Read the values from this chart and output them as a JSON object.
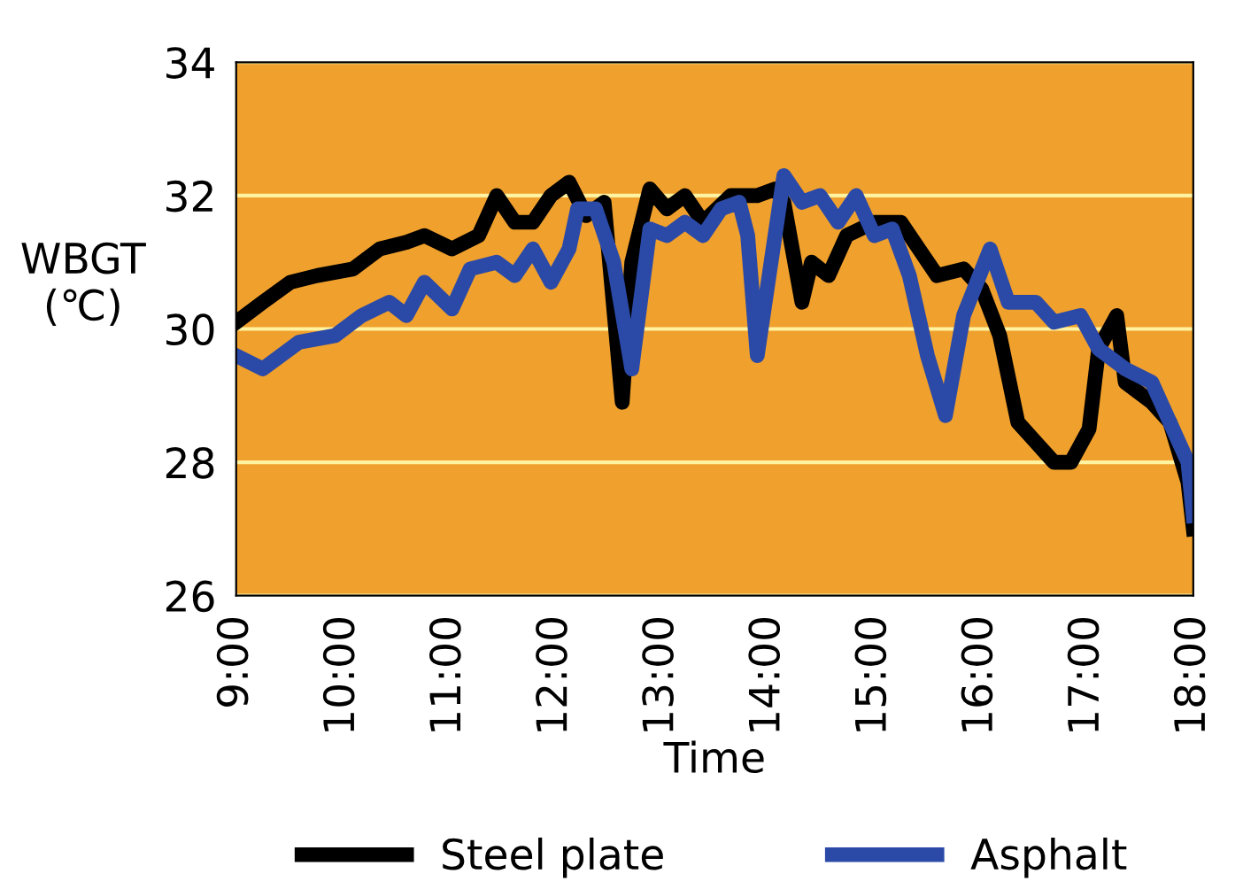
{
  "chart_data": {
    "type": "line",
    "xlabel": "Time",
    "ylabel": "WBGT\n(℃)",
    "xlim": [
      9,
      18
    ],
    "ylim": [
      26,
      34
    ],
    "yticks": [
      26,
      28,
      30,
      32,
      34
    ],
    "xticks": [
      {
        "value": 9,
        "label": "9:00"
      },
      {
        "value": 10,
        "label": "10:00"
      },
      {
        "value": 11,
        "label": "11:00"
      },
      {
        "value": 12,
        "label": "12:00"
      },
      {
        "value": 13,
        "label": "13:00"
      },
      {
        "value": 14,
        "label": "14:00"
      },
      {
        "value": 15,
        "label": "15:00"
      },
      {
        "value": 16,
        "label": "16:00"
      },
      {
        "value": 17,
        "label": "17:00"
      },
      {
        "value": 18,
        "label": "18:00"
      }
    ],
    "grid": "y",
    "legend": "bottom",
    "marker": "none",
    "line_style": "solid",
    "series": [
      {
        "name": "Steel plate",
        "color": "#000000",
        "x": [
          9.0,
          9.25,
          9.51,
          9.76,
          10.1,
          10.35,
          10.6,
          10.77,
          11.03,
          11.28,
          11.45,
          11.62,
          11.79,
          11.96,
          12.13,
          12.29,
          12.46,
          12.63,
          12.72,
          12.89,
          13.05,
          13.22,
          13.39,
          13.65,
          13.9,
          14.07,
          14.15,
          14.32,
          14.41,
          14.57,
          14.74,
          15.0,
          15.25,
          15.42,
          15.59,
          15.84,
          16.01,
          16.18,
          16.35,
          16.52,
          16.69,
          16.85,
          17.02,
          17.11,
          17.28,
          17.36,
          17.61,
          17.78,
          17.95,
          18.0
        ],
        "values": [
          30.1,
          30.4,
          30.7,
          30.8,
          30.9,
          31.2,
          31.3,
          31.4,
          31.2,
          31.4,
          32.0,
          31.6,
          31.6,
          32.0,
          32.2,
          31.7,
          31.9,
          28.9,
          31.0,
          32.1,
          31.8,
          32.0,
          31.6,
          32.0,
          32.0,
          32.1,
          31.9,
          30.4,
          31.0,
          30.8,
          31.4,
          31.6,
          31.6,
          31.2,
          30.8,
          30.9,
          30.6,
          29.9,
          28.6,
          28.3,
          28.0,
          28.0,
          28.5,
          29.7,
          30.2,
          29.2,
          28.9,
          28.6,
          27.7,
          27.0
        ]
      },
      {
        "name": "Asphalt",
        "color": "#2b4aa8",
        "x": [
          9.0,
          9.25,
          9.59,
          9.93,
          10.18,
          10.44,
          10.6,
          10.77,
          11.03,
          11.2,
          11.45,
          11.62,
          11.79,
          11.96,
          12.13,
          12.21,
          12.38,
          12.55,
          12.72,
          12.89,
          13.05,
          13.22,
          13.39,
          13.56,
          13.73,
          13.81,
          13.9,
          14.15,
          14.32,
          14.49,
          14.66,
          14.83,
          15.0,
          15.17,
          15.33,
          15.5,
          15.67,
          15.84,
          16.09,
          16.26,
          16.52,
          16.69,
          16.94,
          17.11,
          17.36,
          17.61,
          17.78,
          17.95,
          18.0
        ],
        "values": [
          29.6,
          29.4,
          29.8,
          29.9,
          30.2,
          30.4,
          30.2,
          30.7,
          30.3,
          30.9,
          31.0,
          30.8,
          31.2,
          30.7,
          31.2,
          31.8,
          31.8,
          31.0,
          29.4,
          31.5,
          31.4,
          31.6,
          31.4,
          31.8,
          31.9,
          31.4,
          29.6,
          32.3,
          31.9,
          32.0,
          31.6,
          32.0,
          31.4,
          31.5,
          30.8,
          29.6,
          28.7,
          30.2,
          31.2,
          30.4,
          30.4,
          30.1,
          30.2,
          29.7,
          29.4,
          29.2,
          28.6,
          28.0,
          27.2
        ]
      }
    ]
  }
}
